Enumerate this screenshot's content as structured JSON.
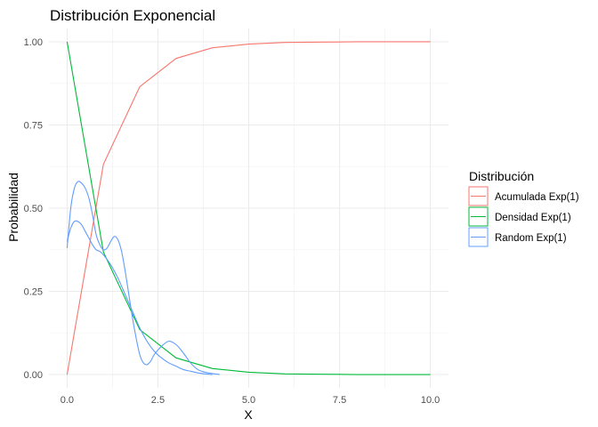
{
  "chart_data": {
    "type": "line",
    "title": "Distribución Exponencial",
    "xlabel": "X",
    "ylabel": "Probabilidad",
    "xlim": [
      -0.5,
      10.5
    ],
    "ylim": [
      -0.04,
      1.04
    ],
    "x_ticks": [
      0.0,
      2.5,
      5.0,
      7.5,
      10.0
    ],
    "x_tick_labels": [
      "0.0",
      "2.5",
      "5.0",
      "7.5",
      "10.0"
    ],
    "y_ticks": [
      0.0,
      0.25,
      0.5,
      0.75,
      1.0
    ],
    "y_tick_labels": [
      "0.00",
      "0.25",
      "0.50",
      "0.75",
      "1.00"
    ],
    "grid": true,
    "legend": {
      "title": "Distribución",
      "position": "right"
    },
    "series": [
      {
        "name": "Acumulada Exp(1)",
        "color": "#F8766D",
        "x": [
          0,
          1,
          2,
          3,
          4,
          5,
          6,
          7,
          8,
          9,
          10
        ],
        "y": [
          0.0,
          0.632,
          0.865,
          0.95,
          0.982,
          0.993,
          0.998,
          0.999,
          1.0,
          1.0,
          1.0
        ]
      },
      {
        "name": "Densidad Exp(1)",
        "color": "#00BA38",
        "x": [
          0,
          1,
          2,
          3,
          4,
          5,
          6,
          7,
          8,
          9,
          10
        ],
        "y": [
          1.0,
          0.368,
          0.135,
          0.05,
          0.018,
          0.007,
          0.002,
          0.001,
          0.0,
          0.0,
          0.0
        ]
      },
      {
        "name": "Random Exp(1)",
        "color": "#619CFF",
        "x": [
          0.0,
          0.1,
          0.2,
          0.3,
          0.4,
          0.5,
          0.6,
          0.7,
          0.8,
          0.9,
          1.0,
          1.1,
          1.2,
          1.3,
          1.4,
          1.5,
          1.6,
          1.7,
          1.8,
          1.9,
          2.0,
          2.1,
          2.2,
          2.3,
          2.4,
          2.6,
          2.8,
          3.0,
          3.2,
          3.4,
          3.6,
          3.8,
          4.0,
          4.2
        ],
        "y": [
          0.38,
          0.5,
          0.56,
          0.58,
          0.575,
          0.56,
          0.53,
          0.48,
          0.42,
          0.39,
          0.375,
          0.38,
          0.4,
          0.415,
          0.405,
          0.37,
          0.31,
          0.24,
          0.17,
          0.11,
          0.06,
          0.035,
          0.03,
          0.04,
          0.06,
          0.085,
          0.1,
          0.09,
          0.065,
          0.035,
          0.015,
          0.007,
          0.003,
          0.0
        ]
      },
      {
        "name": "Random Exp(1)",
        "color": "#619CFF",
        "x": [
          0.0,
          0.1,
          0.2,
          0.3,
          0.4,
          0.5,
          0.6,
          0.7,
          0.8,
          0.9,
          1.0,
          1.2,
          1.4,
          1.6,
          1.8,
          2.0,
          2.2,
          2.4,
          2.6,
          2.8,
          3.0,
          3.2,
          3.4,
          3.6,
          3.8,
          4.0
        ],
        "y": [
          0.4,
          0.44,
          0.46,
          0.46,
          0.45,
          0.43,
          0.41,
          0.39,
          0.375,
          0.37,
          0.36,
          0.33,
          0.29,
          0.24,
          0.19,
          0.14,
          0.1,
          0.07,
          0.05,
          0.035,
          0.025,
          0.015,
          0.01,
          0.005,
          0.002,
          0.0
        ]
      }
    ],
    "legend_entries": [
      {
        "name": "Acumulada Exp(1)",
        "color": "#F8766D"
      },
      {
        "name": "Densidad Exp(1)",
        "color": "#00BA38"
      },
      {
        "name": "Random Exp(1)",
        "color": "#619CFF"
      }
    ]
  }
}
